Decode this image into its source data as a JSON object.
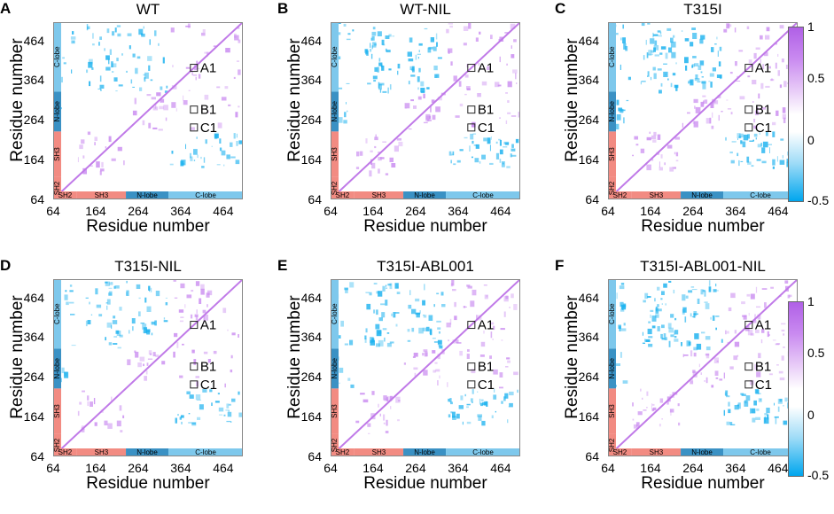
{
  "figure": {
    "colorbar_ticks": [
      "1",
      "0.5",
      "0",
      "-0.5"
    ],
    "segments_x": [
      "SH2",
      "SH3",
      "N-lobe",
      "C-lobe"
    ],
    "segments_y": [
      "SH2",
      "SH3",
      "N-lobe",
      "C-lobe"
    ],
    "colors": {
      "positive": "#c98af0",
      "negative": "#1ab1ef",
      "diagonal": "#c07ae8",
      "sh2_bar": "#f28b82",
      "sh3_bar": "#f28b82",
      "nlobe_bar": "#3a91c4",
      "clobe_bar": "#7ec8ec"
    }
  },
  "chart_data": [
    {
      "type": "heatmap",
      "panel": "A",
      "title": "WT",
      "xlabel": "Residue number",
      "ylabel": "Residue number",
      "xticks": [
        "64",
        "164",
        "264",
        "364",
        "464"
      ],
      "yticks": [
        "64",
        "164",
        "264",
        "364",
        "464"
      ],
      "xlim": [
        64,
        510
      ],
      "ylim": [
        64,
        510
      ],
      "clim": [
        -0.5,
        1
      ],
      "annotations": [
        {
          "label": "A1",
          "x": 395,
          "y": 395
        },
        {
          "label": "B1",
          "x": 395,
          "y": 290
        },
        {
          "label": "C1",
          "x": 395,
          "y": 245
        }
      ]
    },
    {
      "type": "heatmap",
      "panel": "B",
      "title": "WT-NIL",
      "xlabel": "Residue number",
      "ylabel": "Residue number",
      "xticks": [
        "64",
        "164",
        "264",
        "364",
        "464"
      ],
      "yticks": [
        "64",
        "164",
        "264",
        "364",
        "464"
      ],
      "xlim": [
        64,
        510
      ],
      "ylim": [
        64,
        510
      ],
      "clim": [
        -0.5,
        1
      ],
      "annotations": [
        {
          "label": "A1",
          "x": 395,
          "y": 395
        },
        {
          "label": "B1",
          "x": 395,
          "y": 290
        },
        {
          "label": "C1",
          "x": 395,
          "y": 245
        }
      ]
    },
    {
      "type": "heatmap",
      "panel": "C",
      "title": "T315I",
      "xlabel": "Residue number",
      "ylabel": "Residue number",
      "xticks": [
        "64",
        "164",
        "264",
        "364",
        "464"
      ],
      "yticks": [
        "64",
        "164",
        "264",
        "364",
        "464"
      ],
      "xlim": [
        64,
        510
      ],
      "ylim": [
        64,
        510
      ],
      "clim": [
        -0.5,
        1
      ],
      "annotations": [
        {
          "label": "A1",
          "x": 395,
          "y": 395
        },
        {
          "label": "B1",
          "x": 395,
          "y": 290
        },
        {
          "label": "C1",
          "x": 395,
          "y": 245
        }
      ]
    },
    {
      "type": "heatmap",
      "panel": "D",
      "title": "T315I-NIL",
      "xlabel": "Residue number",
      "ylabel": "Residue number",
      "xticks": [
        "64",
        "164",
        "264",
        "364",
        "464"
      ],
      "yticks": [
        "64",
        "164",
        "264",
        "364",
        "464"
      ],
      "xlim": [
        64,
        510
      ],
      "ylim": [
        64,
        510
      ],
      "clim": [
        -0.5,
        1
      ],
      "annotations": [
        {
          "label": "A1",
          "x": 395,
          "y": 395
        },
        {
          "label": "B1",
          "x": 395,
          "y": 290
        },
        {
          "label": "C1",
          "x": 395,
          "y": 245
        }
      ]
    },
    {
      "type": "heatmap",
      "panel": "E",
      "title": "T315I-ABL001",
      "xlabel": "Residue number",
      "ylabel": "Residue number",
      "xticks": [
        "64",
        "164",
        "264",
        "364",
        "464"
      ],
      "yticks": [
        "64",
        "164",
        "264",
        "364",
        "464"
      ],
      "xlim": [
        64,
        510
      ],
      "ylim": [
        64,
        510
      ],
      "clim": [
        -0.5,
        1
      ],
      "annotations": [
        {
          "label": "A1",
          "x": 395,
          "y": 395
        },
        {
          "label": "B1",
          "x": 395,
          "y": 290
        },
        {
          "label": "C1",
          "x": 395,
          "y": 245
        }
      ]
    },
    {
      "type": "heatmap",
      "panel": "F",
      "title": "T315I-ABL001-NIL",
      "xlabel": "Residue number",
      "ylabel": "Residue number",
      "xticks": [
        "64",
        "164",
        "264",
        "364",
        "464"
      ],
      "yticks": [
        "64",
        "164",
        "264",
        "364",
        "464"
      ],
      "xlim": [
        64,
        510
      ],
      "ylim": [
        64,
        510
      ],
      "clim": [
        -0.5,
        1
      ],
      "annotations": [
        {
          "label": "A1",
          "x": 395,
          "y": 395
        },
        {
          "label": "B1",
          "x": 395,
          "y": 290
        },
        {
          "label": "C1",
          "x": 395,
          "y": 245
        }
      ]
    }
  ]
}
